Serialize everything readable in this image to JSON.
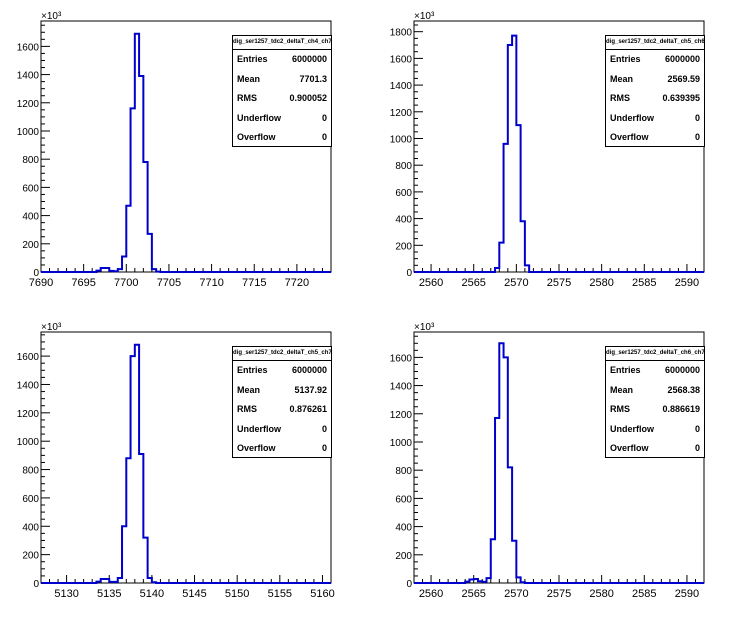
{
  "chart_data": [
    {
      "type": "histogram",
      "histogram_name": "dig_ser1257_tdc2_deltaT_ch4_ch7",
      "y_exponent_label": "×10³",
      "xlim": [
        7690,
        7724
      ],
      "ylim": [
        0,
        1780
      ],
      "x_ticks": [
        7690,
        7695,
        7700,
        7705,
        7710,
        7715,
        7720
      ],
      "y_ticks": [
        0,
        200,
        400,
        600,
        800,
        1000,
        1200,
        1400,
        1600
      ],
      "bin_width": 0.5,
      "x": [
        7696.5,
        7697,
        7697.5,
        7698,
        7698.5,
        7699,
        7699.5,
        7700,
        7700.5,
        7701,
        7701.5,
        7702,
        7702.5,
        7703,
        7703.5
      ],
      "values": [
        10,
        28,
        28,
        8,
        5,
        20,
        110,
        470,
        1160,
        1690,
        1390,
        780,
        270,
        20,
        3
      ],
      "stats": [
        {
          "label": "Entries",
          "value": "6000000"
        },
        {
          "label": "Mean",
          "value": "7701.3"
        },
        {
          "label": "RMS",
          "value": "0.900052"
        },
        {
          "label": "Underflow",
          "value": "0"
        },
        {
          "label": "Overflow",
          "value": "0"
        }
      ]
    },
    {
      "type": "histogram",
      "histogram_name": "dig_ser1257_tdc2_deltaT_ch5_ch6",
      "y_exponent_label": "×10³",
      "xlim": [
        2558,
        2592
      ],
      "ylim": [
        0,
        1880
      ],
      "x_ticks": [
        2560,
        2565,
        2570,
        2575,
        2580,
        2585,
        2590
      ],
      "y_ticks": [
        0,
        200,
        400,
        600,
        800,
        1000,
        1200,
        1400,
        1600,
        1800
      ],
      "bin_width": 0.5,
      "x": [
        2567.5,
        2568,
        2568.5,
        2569,
        2569.5,
        2570,
        2570.5,
        2571
      ],
      "values": [
        30,
        220,
        960,
        1700,
        1770,
        1100,
        380,
        50
      ],
      "stats": [
        {
          "label": "Entries",
          "value": "6000000"
        },
        {
          "label": "Mean",
          "value": "2569.59"
        },
        {
          "label": "RMS",
          "value": "0.639395"
        },
        {
          "label": "Underflow",
          "value": "0"
        },
        {
          "label": "Overflow",
          "value": "0"
        }
      ]
    },
    {
      "type": "histogram",
      "histogram_name": "dig_ser1257_tdc2_deltaT_ch5_ch7",
      "y_exponent_label": "×10³",
      "xlim": [
        5127,
        5161
      ],
      "ylim": [
        0,
        1770
      ],
      "x_ticks": [
        5130,
        5135,
        5140,
        5145,
        5150,
        5155,
        5160
      ],
      "y_ticks": [
        0,
        200,
        400,
        600,
        800,
        1000,
        1200,
        1400,
        1600
      ],
      "bin_width": 0.5,
      "x": [
        5133.5,
        5134,
        5134.5,
        5135,
        5135.5,
        5136,
        5136.5,
        5137,
        5137.5,
        5138,
        5138.5,
        5139,
        5139.5,
        5140
      ],
      "values": [
        10,
        28,
        28,
        8,
        8,
        35,
        400,
        880,
        1600,
        1680,
        910,
        320,
        35,
        5
      ],
      "stats": [
        {
          "label": "Entries",
          "value": "6000000"
        },
        {
          "label": "Mean",
          "value": "5137.92"
        },
        {
          "label": "RMS",
          "value": "0.876261"
        },
        {
          "label": "Underflow",
          "value": "0"
        },
        {
          "label": "Overflow",
          "value": "0"
        }
      ]
    },
    {
      "type": "histogram",
      "histogram_name": "dig_ser1257_tdc2_deltaT_ch6_ch7",
      "y_exponent_label": "×10³",
      "xlim": [
        2558,
        2592
      ],
      "ylim": [
        0,
        1780
      ],
      "x_ticks": [
        2560,
        2565,
        2570,
        2575,
        2580,
        2585,
        2590
      ],
      "y_ticks": [
        0,
        200,
        400,
        600,
        800,
        1000,
        1200,
        1400,
        1600
      ],
      "bin_width": 0.5,
      "x": [
        2564,
        2564.5,
        2565,
        2565.5,
        2566,
        2566.5,
        2567,
        2567.5,
        2568,
        2568.5,
        2569,
        2569.5,
        2570,
        2570.5
      ],
      "values": [
        10,
        25,
        28,
        12,
        8,
        35,
        310,
        1170,
        1700,
        1600,
        820,
        300,
        40,
        5
      ],
      "stats": [
        {
          "label": "Entries",
          "value": "6000000"
        },
        {
          "label": "Mean",
          "value": "2568.38"
        },
        {
          "label": "RMS",
          "value": "0.886619"
        },
        {
          "label": "Underflow",
          "value": "0"
        },
        {
          "label": "Overflow",
          "value": "0"
        }
      ]
    }
  ]
}
